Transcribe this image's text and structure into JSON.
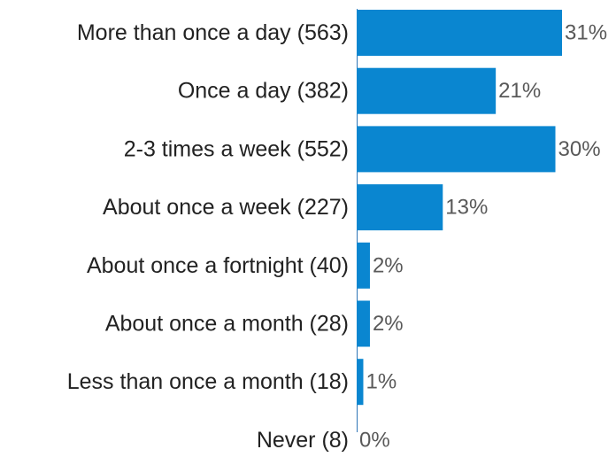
{
  "chart_data": {
    "type": "bar",
    "orientation": "horizontal",
    "categories": [
      "More than once a day (563)",
      "Once a day (382)",
      "2-3 times a week (552)",
      "About once a week (227)",
      "About once a fortnight (40)",
      "About once a month (28)",
      "Less than once a month (18)",
      "Never (8)"
    ],
    "values": [
      31,
      21,
      30,
      13,
      2,
      2,
      1,
      0
    ],
    "value_labels": [
      "31%",
      "21%",
      "30%",
      "13%",
      "2%",
      "2%",
      "1%",
      "0%"
    ],
    "bar_color": "#0A86D0",
    "xlim": [
      0,
      31
    ],
    "grid": false,
    "legend": "none"
  }
}
